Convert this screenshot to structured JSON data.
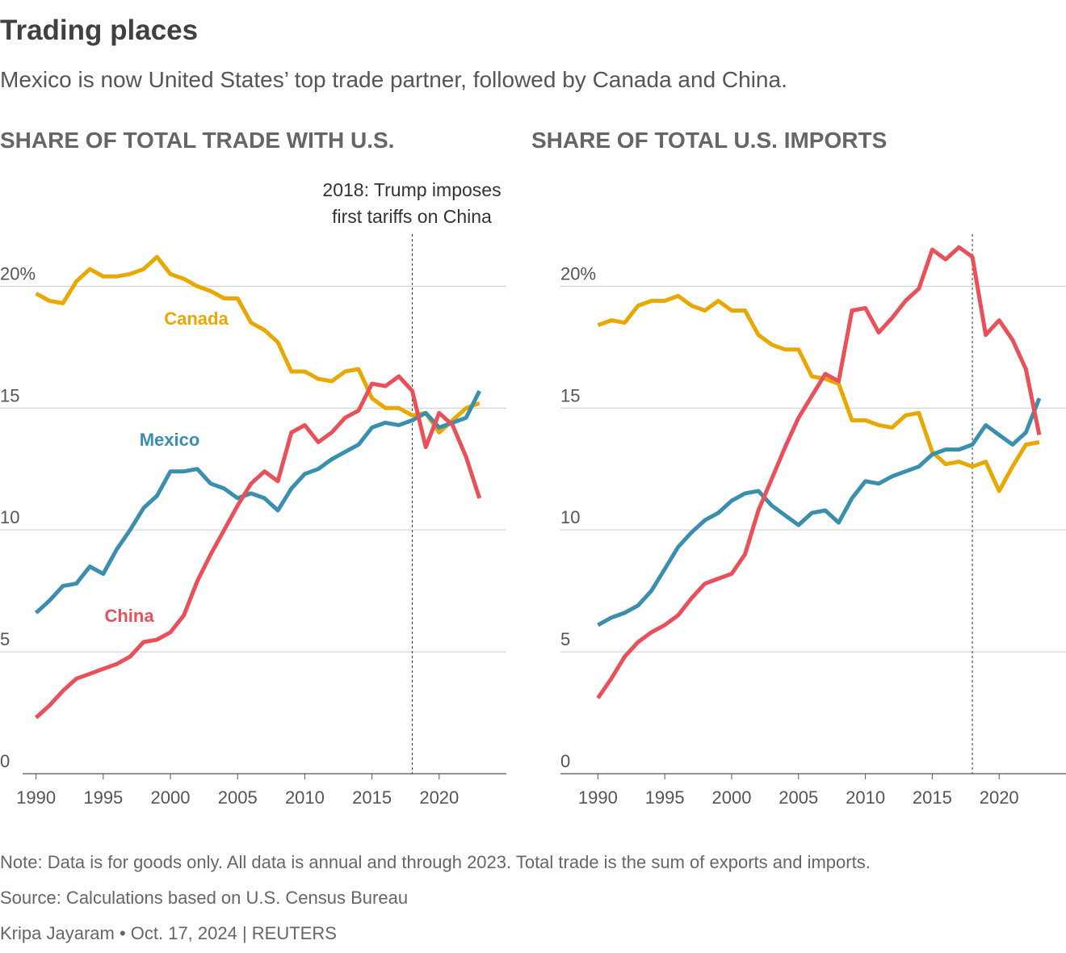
{
  "title": "Trading places",
  "subtitle": "Mexico is now United States’ top trade partner, followed by Canada and China.",
  "chart_data": [
    {
      "type": "line",
      "title": "SHARE OF TOTAL TRADE WITH U.S.",
      "x": [
        1990,
        1991,
        1992,
        1993,
        1994,
        1995,
        1996,
        1997,
        1998,
        1999,
        2000,
        2001,
        2002,
        2003,
        2004,
        2005,
        2006,
        2007,
        2008,
        2009,
        2010,
        2011,
        2012,
        2013,
        2014,
        2015,
        2016,
        2017,
        2018,
        2019,
        2020,
        2021,
        2022,
        2023
      ],
      "series": [
        {
          "name": "Canada",
          "color": "#e8a800",
          "values": [
            19.7,
            19.4,
            19.3,
            20.2,
            20.7,
            20.4,
            20.4,
            20.5,
            20.7,
            21.2,
            20.5,
            20.3,
            20.0,
            19.8,
            19.5,
            19.5,
            18.5,
            18.2,
            17.7,
            16.5,
            16.5,
            16.2,
            16.1,
            16.5,
            16.6,
            15.4,
            15.0,
            15.0,
            14.7,
            14.8,
            14.0,
            14.5,
            15.0,
            15.2
          ]
        },
        {
          "name": "Mexico",
          "color": "#3a8fae",
          "values": [
            6.6,
            7.1,
            7.7,
            7.8,
            8.5,
            8.2,
            9.2,
            10.0,
            10.9,
            11.4,
            12.4,
            12.4,
            12.5,
            11.9,
            11.7,
            11.3,
            11.5,
            11.3,
            10.8,
            11.7,
            12.3,
            12.5,
            12.9,
            13.2,
            13.5,
            14.2,
            14.4,
            14.3,
            14.5,
            14.8,
            14.2,
            14.4,
            14.6,
            15.7
          ]
        },
        {
          "name": "China",
          "color": "#e9505a",
          "values": [
            2.3,
            2.8,
            3.4,
            3.9,
            4.1,
            4.3,
            4.5,
            4.8,
            5.4,
            5.5,
            5.8,
            6.5,
            7.9,
            9.0,
            10.0,
            11.0,
            11.9,
            12.4,
            12.0,
            14.0,
            14.3,
            13.6,
            14.0,
            14.6,
            14.9,
            16.0,
            15.9,
            16.3,
            15.7,
            13.4,
            14.8,
            14.3,
            13.0,
            11.3
          ]
        }
      ],
      "xlim": [
        1989,
        2025
      ],
      "xticks": [
        1990,
        1995,
        2000,
        2005,
        2010,
        2015,
        2020
      ],
      "ylim": [
        0,
        22
      ],
      "yticks": [
        0,
        5,
        10,
        15,
        {
          "value": 20,
          "label": "20%"
        }
      ],
      "grid": true,
      "vline": 2018,
      "annotation": [
        "2018: Trump imposes",
        "first tariffs on China"
      ]
    },
    {
      "type": "line",
      "title": "SHARE OF TOTAL U.S. IMPORTS",
      "x": [
        1990,
        1991,
        1992,
        1993,
        1994,
        1995,
        1996,
        1997,
        1998,
        1999,
        2000,
        2001,
        2002,
        2003,
        2004,
        2005,
        2006,
        2007,
        2008,
        2009,
        2010,
        2011,
        2012,
        2013,
        2014,
        2015,
        2016,
        2017,
        2018,
        2019,
        2020,
        2021,
        2022,
        2023
      ],
      "series": [
        {
          "color": "#e8a800",
          "values": [
            18.4,
            18.6,
            18.5,
            19.2,
            19.4,
            19.4,
            19.6,
            19.2,
            19.0,
            19.4,
            19.0,
            19.0,
            18.0,
            17.6,
            17.4,
            17.4,
            16.3,
            16.2,
            16.0,
            14.5,
            14.5,
            14.3,
            14.2,
            14.7,
            14.8,
            13.2,
            12.7,
            12.8,
            12.6,
            12.8,
            11.6,
            12.6,
            13.5,
            13.6
          ]
        },
        {
          "color": "#3a8fae",
          "values": [
            6.1,
            6.4,
            6.6,
            6.9,
            7.5,
            8.4,
            9.3,
            9.9,
            10.4,
            10.7,
            11.2,
            11.5,
            11.6,
            11.0,
            10.6,
            10.2,
            10.7,
            10.8,
            10.3,
            11.3,
            12.0,
            11.9,
            12.2,
            12.4,
            12.6,
            13.1,
            13.3,
            13.3,
            13.5,
            14.3,
            13.9,
            13.5,
            14.0,
            15.4
          ]
        },
        {
          "color": "#e9505a",
          "values": [
            3.1,
            3.9,
            4.8,
            5.4,
            5.8,
            6.1,
            6.5,
            7.2,
            7.8,
            8.0,
            8.2,
            9.0,
            10.8,
            12.1,
            13.4,
            14.6,
            15.5,
            16.4,
            16.1,
            19.0,
            19.1,
            18.1,
            18.7,
            19.4,
            19.9,
            21.5,
            21.1,
            21.6,
            21.2,
            18.0,
            18.6,
            17.8,
            16.6,
            13.9
          ]
        }
      ],
      "xlim": [
        1987.2,
        2025
      ],
      "xticks": [
        1990,
        1995,
        2000,
        2005,
        2010,
        2015,
        2020
      ],
      "ylim": [
        0,
        22
      ],
      "yticks": [
        0,
        5,
        10,
        15,
        {
          "value": 20,
          "label": "20%"
        }
      ],
      "grid": true,
      "vline": 2018
    }
  ],
  "note": "Note: Data is for goods only. All data is annual and through 2023. Total trade is the sum of exports and imports.",
  "source": "Source: Calculations based on U.S. Census Bureau",
  "credit": "Kripa Jayaram • Oct. 17, 2024 | REUTERS"
}
